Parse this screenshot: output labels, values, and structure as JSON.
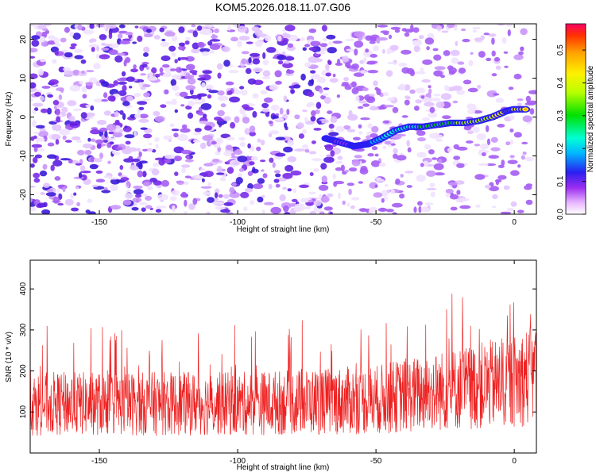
{
  "figure_title": "KOM5.2026.018.11.07.G06",
  "colors": {
    "signal_line": "#ee2222",
    "axis": "#000000",
    "speckle": "#6a1fe8"
  },
  "chart_data": [
    {
      "type": "heatmap",
      "title": "KOM5.2026.018.11.07.G06",
      "xlabel": "Height of straight line (km)",
      "ylabel": "Frequency (Hz)",
      "xlim": [
        -175,
        8
      ],
      "ylim": [
        -25,
        24
      ],
      "x_ticks": [
        -150,
        -100,
        -50,
        0
      ],
      "y_ticks": [
        -20,
        -10,
        0,
        10,
        20
      ],
      "colorbar": {
        "label": "Normalized spectral amplitude",
        "range": [
          0.0,
          0.58
        ],
        "ticks": [
          "0.0",
          "0.1",
          "0.2",
          "0.3",
          "0.4",
          "0.5"
        ],
        "tick_values": [
          0.0,
          0.1,
          0.2,
          0.3,
          0.4,
          0.5
        ]
      },
      "signal_track": {
        "x": [
          -68,
          -63,
          -58,
          -53,
          -48,
          -43,
          -38,
          -33,
          -28,
          -23,
          -18,
          -13,
          -8,
          -3,
          0,
          5
        ],
        "y": [
          -5.5,
          -6.5,
          -7.5,
          -7.0,
          -5.5,
          -3.5,
          -2.5,
          -2.5,
          -2.0,
          -1.5,
          -1.5,
          -1.0,
          0.0,
          1.5,
          2.0,
          2.0
        ],
        "amplitude": [
          0.18,
          0.14,
          0.16,
          0.2,
          0.26,
          0.3,
          0.33,
          0.36,
          0.4,
          0.42,
          0.45,
          0.48,
          0.5,
          0.55,
          0.57,
          0.5
        ]
      },
      "background": "random speckle noise, amplitude ~0.0-0.12"
    },
    {
      "type": "line",
      "xlabel": "Height of straight line (km)",
      "ylabel": "SNR (10 * v/v)",
      "xlim": [
        -175,
        8
      ],
      "ylim": [
        0,
        470
      ],
      "x_ticks": [
        -150,
        -100,
        -50,
        0
      ],
      "y_ticks": [
        100,
        200,
        300,
        400
      ],
      "series": [
        {
          "name": "SNR",
          "color": "#ee2222",
          "mean_envelope": {
            "x": [
              -175,
              -100,
              -50,
              0,
              8
            ],
            "mean": [
              120,
              120,
              130,
              175,
              195
            ]
          },
          "typical_peak": [
            300,
            330,
            370,
            420,
            460
          ],
          "description": "dense noisy signal, roughly 20-470"
        }
      ]
    }
  ]
}
